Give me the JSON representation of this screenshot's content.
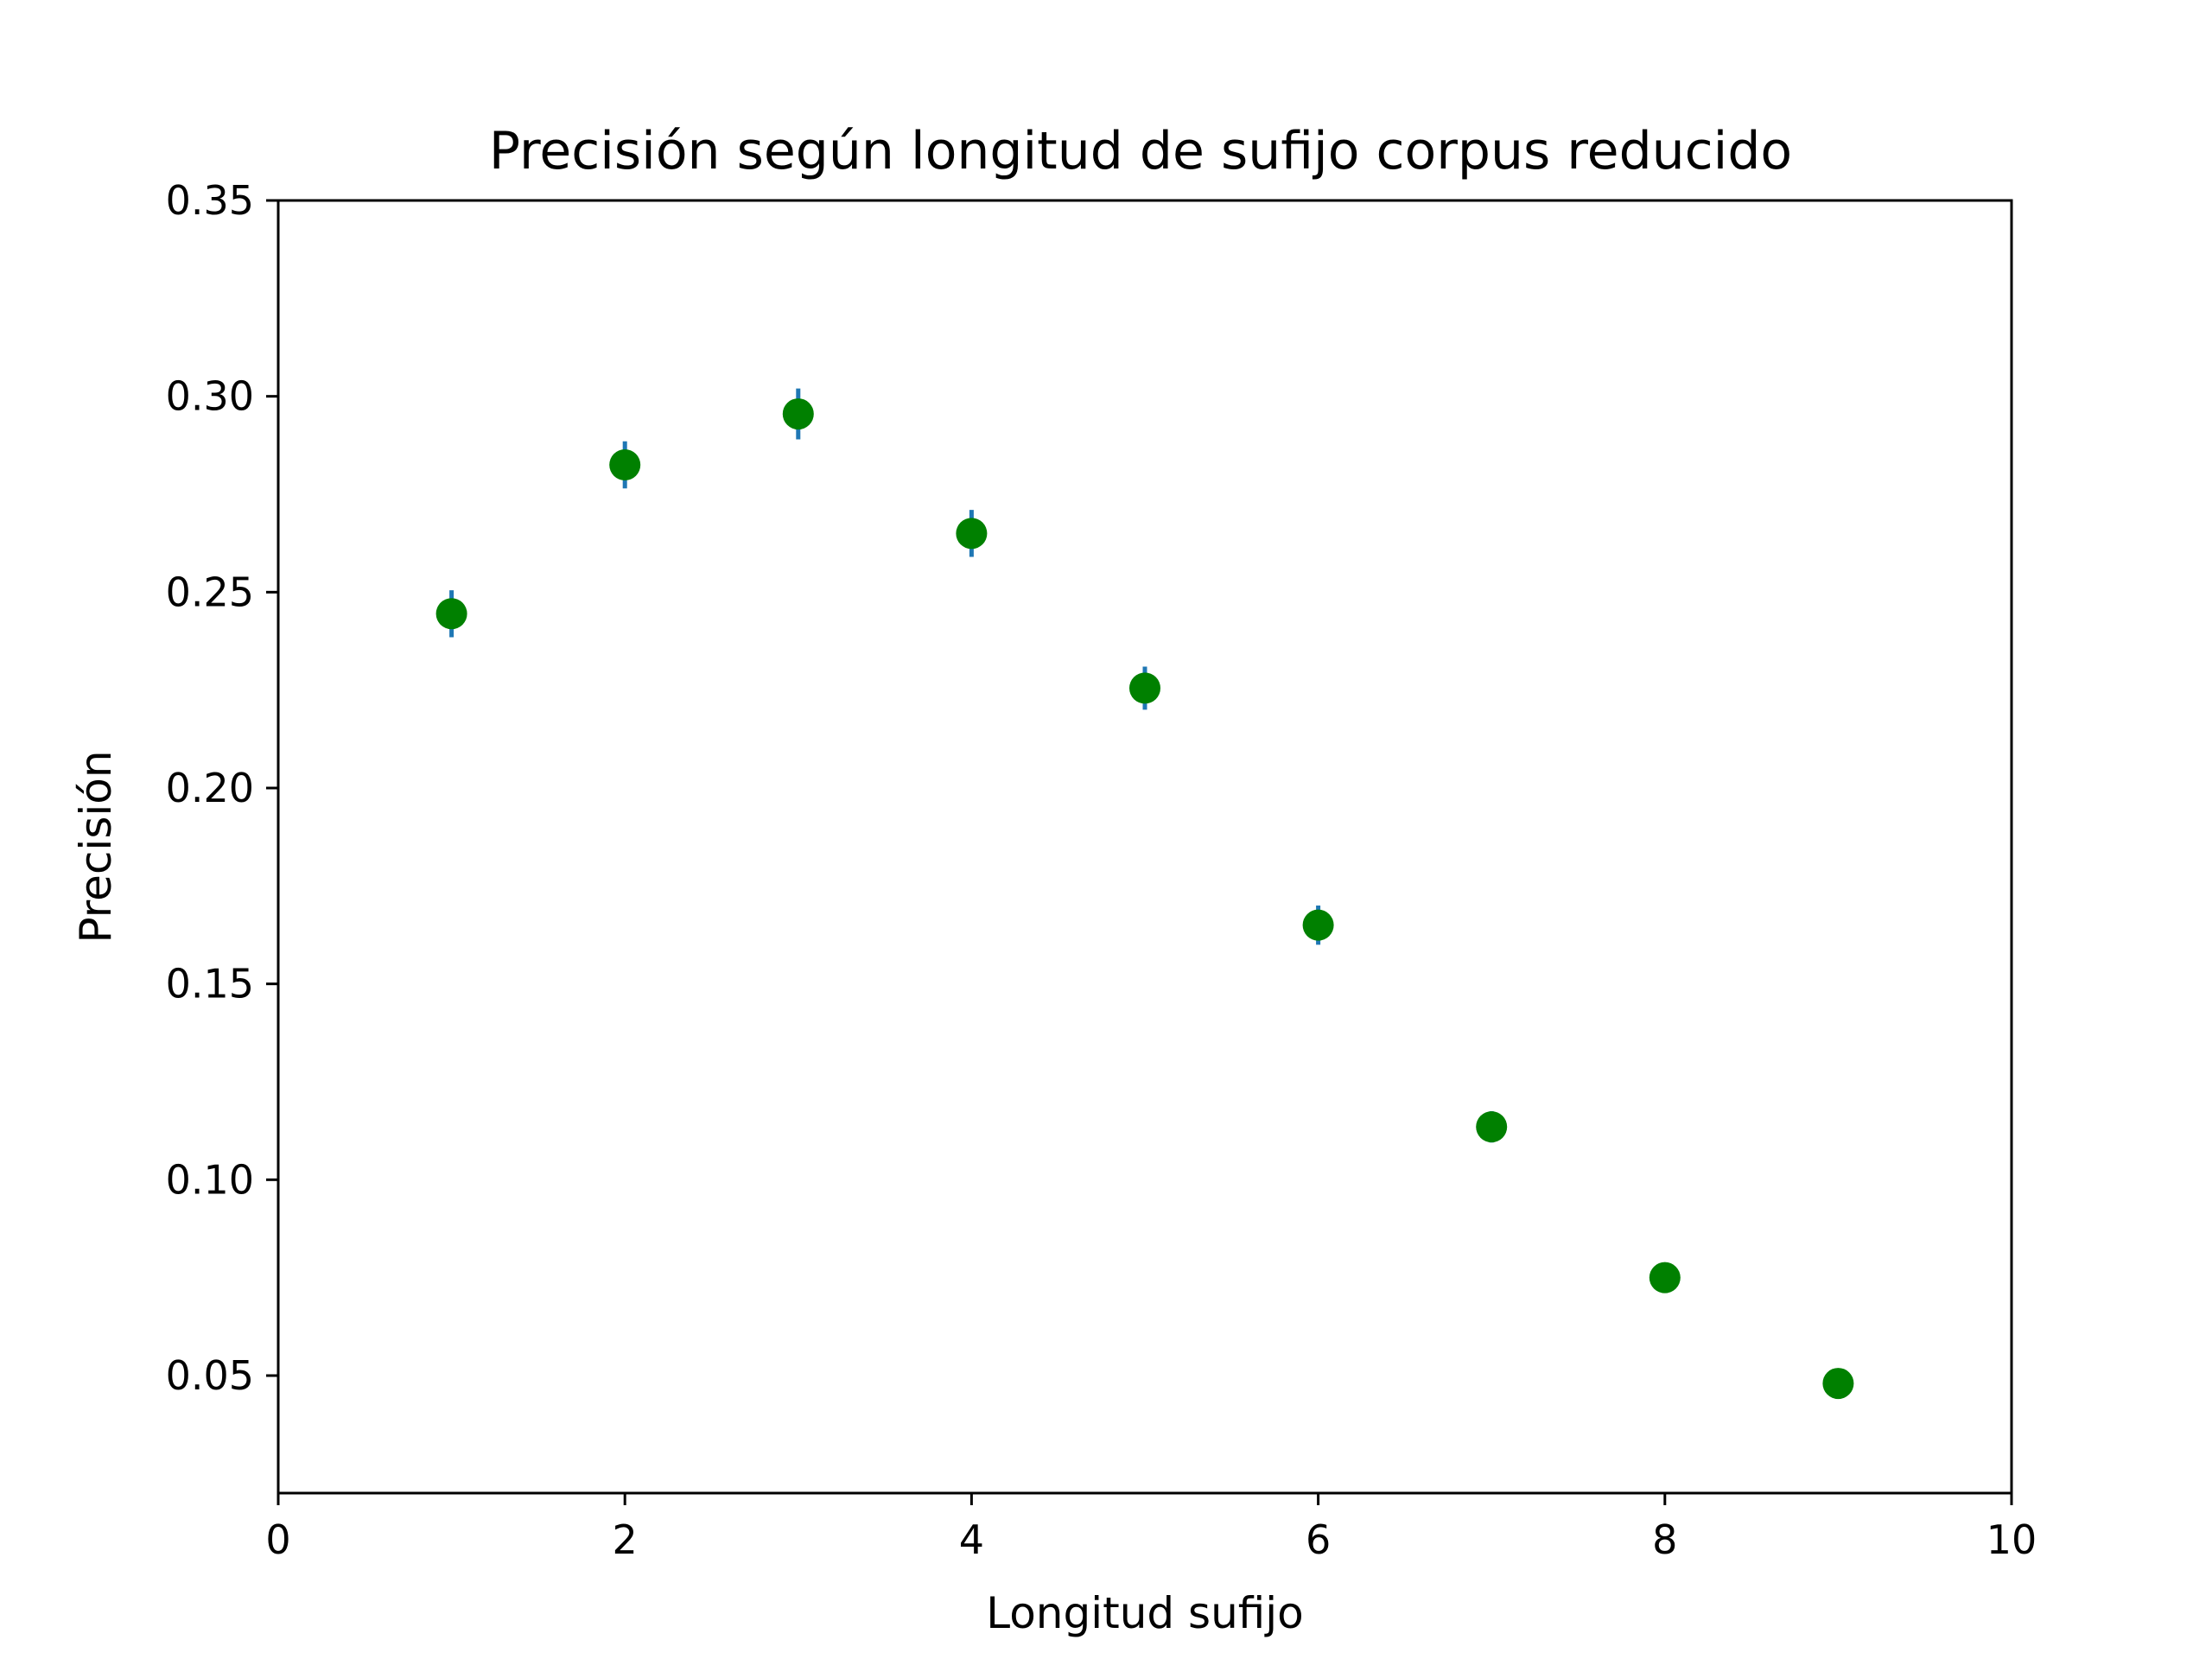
{
  "chart_data": {
    "type": "scatter",
    "title": "Precisión según longitud de sufijo corpus reducido",
    "xlabel": "Longitud sufijo",
    "ylabel": "Precisión",
    "xlim": [
      0,
      10
    ],
    "ylim": [
      0.02,
      0.35
    ],
    "xticks": [
      0,
      2,
      4,
      6,
      8,
      10
    ],
    "yticks": [
      0.05,
      0.1,
      0.15,
      0.2,
      0.25,
      0.3,
      0.35
    ],
    "xtick_labels": [
      "0",
      "2",
      "4",
      "6",
      "8",
      "10"
    ],
    "ytick_labels": [
      "0.05",
      "0.10",
      "0.15",
      "0.20",
      "0.25",
      "0.30",
      "0.35"
    ],
    "grid": false,
    "point_color": "#008000",
    "errorbar_color": "#1f77b4",
    "points": [
      {
        "x": 1,
        "y": 0.2445,
        "err": 0.006
      },
      {
        "x": 2,
        "y": 0.2825,
        "err": 0.006
      },
      {
        "x": 3,
        "y": 0.2955,
        "err": 0.0065
      },
      {
        "x": 4,
        "y": 0.265,
        "err": 0.006
      },
      {
        "x": 5,
        "y": 0.2255,
        "err": 0.0055
      },
      {
        "x": 6,
        "y": 0.165,
        "err": 0.005
      },
      {
        "x": 7,
        "y": 0.1135,
        "err": 0.004
      },
      {
        "x": 8,
        "y": 0.075,
        "err": 0.0015
      },
      {
        "x": 9,
        "y": 0.048,
        "err": 0.001
      }
    ]
  }
}
